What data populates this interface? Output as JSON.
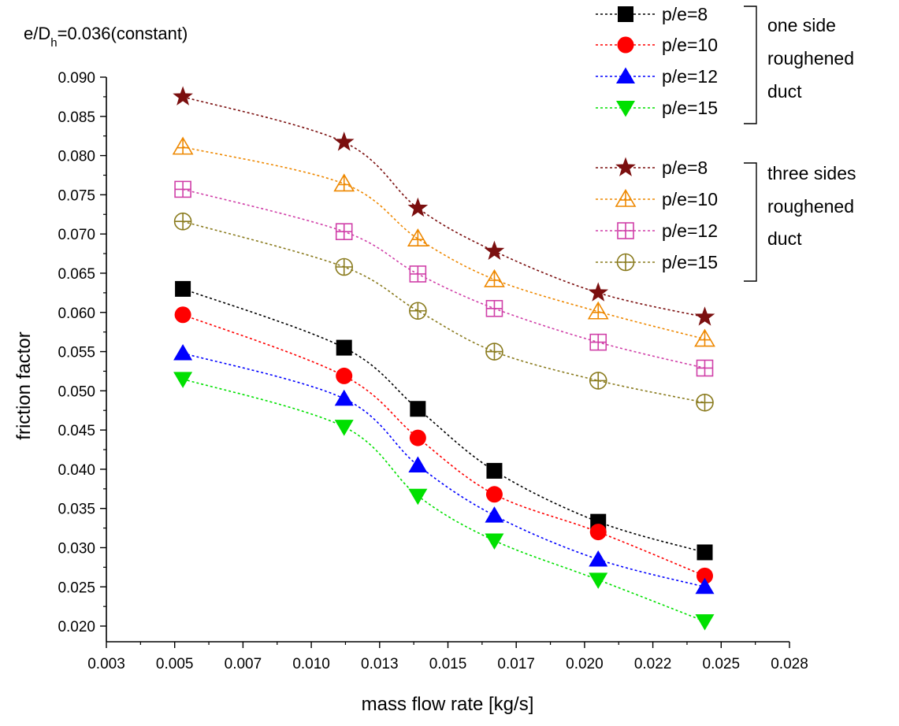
{
  "chart_data": {
    "type": "line",
    "xlabel": "mass flow rate [kg/s]",
    "ylabel": "friction factor",
    "annotation": {
      "prefix": "e/D",
      "subscript": "h",
      "suffix": "=0.036(constant)"
    },
    "xlim": [
      0.003,
      0.028
    ],
    "ylim": [
      0.018,
      0.09
    ],
    "xticks": [
      0.003,
      0.005,
      0.007,
      0.01,
      0.013,
      0.015,
      0.017,
      0.02,
      0.022,
      0.025,
      0.028
    ],
    "xtick_labels": [
      "0.003",
      "0.005",
      "0.007",
      "0.010",
      "0.013",
      "0.015",
      "0.017",
      "0.020",
      "0.022",
      "0.025",
      "0.028"
    ],
    "yticks": [
      0.02,
      0.025,
      0.03,
      0.035,
      0.04,
      0.045,
      0.05,
      0.055,
      0.06,
      0.065,
      0.07,
      0.075,
      0.08,
      0.085,
      0.09
    ],
    "ytick_labels": [
      "0.020",
      "0.025",
      "0.030",
      "0.035",
      "0.040",
      "0.045",
      "0.050",
      "0.055",
      "0.060",
      "0.065",
      "0.070",
      "0.075",
      "0.080",
      "0.085",
      "0.090"
    ],
    "grid": false,
    "legend_position": "top-right",
    "x": [
      0.0058,
      0.0117,
      0.0144,
      0.0172,
      0.021,
      0.0249
    ],
    "groups": [
      {
        "label_lines": [
          "one side",
          "roughened",
          "duct"
        ],
        "series_indices": [
          0,
          1,
          2,
          3
        ]
      },
      {
        "label_lines": [
          "three sides",
          "roughened",
          "duct"
        ],
        "series_indices": [
          4,
          5,
          6,
          7
        ]
      }
    ],
    "series": [
      {
        "name": "p/e=8",
        "group": "one side roughened duct",
        "marker": "square-filled",
        "color": "#000000",
        "values": [
          0.063,
          0.0555,
          0.0477,
          0.0398,
          0.0333,
          0.0294
        ]
      },
      {
        "name": "p/e=10",
        "group": "one side roughened duct",
        "marker": "circle-filled",
        "color": "#ff0000",
        "values": [
          0.0597,
          0.0519,
          0.044,
          0.0368,
          0.032,
          0.0264
        ]
      },
      {
        "name": "p/e=12",
        "group": "one side roughened duct",
        "marker": "triangle-up-filled",
        "color": "#0000ff",
        "values": [
          0.0548,
          0.049,
          0.0405,
          0.0341,
          0.0285,
          0.025
        ]
      },
      {
        "name": "p/e=15",
        "group": "one side roughened duct",
        "marker": "triangle-down-filled",
        "color": "#00e000",
        "values": [
          0.0515,
          0.0454,
          0.0366,
          0.0309,
          0.0259,
          0.0206
        ]
      },
      {
        "name": "p/e=8",
        "group": "three sides roughened duct",
        "marker": "star-filled",
        "color": "#7b0f0f",
        "values": [
          0.0875,
          0.0817,
          0.0733,
          0.0678,
          0.0625,
          0.0594
        ]
      },
      {
        "name": "p/e=10",
        "group": "three sides roughened duct",
        "marker": "triangle-up-cross",
        "color": "#ee8800",
        "values": [
          0.0811,
          0.0764,
          0.0694,
          0.0642,
          0.0601,
          0.0566
        ]
      },
      {
        "name": "p/e=12",
        "group": "three sides roughened duct",
        "marker": "square-plus",
        "color": "#d03fa8",
        "values": [
          0.0757,
          0.0703,
          0.0649,
          0.0605,
          0.0562,
          0.0529
        ]
      },
      {
        "name": "p/e=15",
        "group": "three sides roughened duct",
        "marker": "circle-plus",
        "color": "#8a7b1e",
        "values": [
          0.0716,
          0.0658,
          0.0602,
          0.055,
          0.0513,
          0.0485
        ]
      }
    ]
  }
}
